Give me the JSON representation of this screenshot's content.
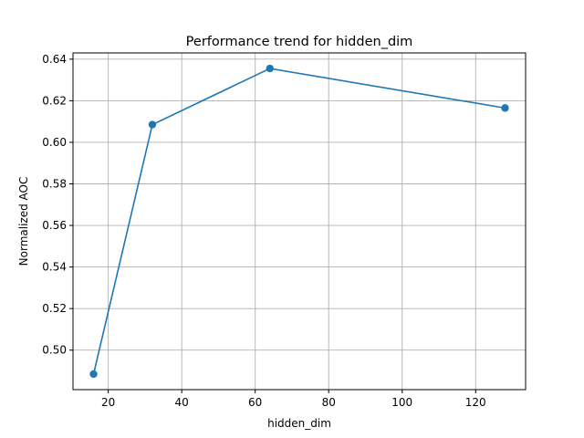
{
  "chart_data": {
    "type": "line",
    "title": "Performance trend for hidden_dim",
    "xlabel": "hidden_dim",
    "ylabel": "Normalized AOC",
    "x": [
      16,
      32,
      64,
      128
    ],
    "series": [
      {
        "values": [
          0.4885,
          0.6085,
          0.6355,
          0.6165
        ]
      }
    ],
    "xlim": [
      10.4,
      133.6
    ],
    "ylim": [
      0.481,
      0.643
    ],
    "xticks": [
      20,
      40,
      60,
      80,
      100,
      120
    ],
    "yticks": [
      0.5,
      0.52,
      0.54,
      0.56,
      0.58,
      0.6,
      0.62,
      0.64
    ],
    "xtick_labels": [
      "20",
      "40",
      "60",
      "80",
      "100",
      "120"
    ],
    "ytick_labels": [
      "0.50",
      "0.52",
      "0.54",
      "0.56",
      "0.58",
      "0.60",
      "0.62",
      "0.64"
    ],
    "grid": true,
    "line_color": "#1f77b4",
    "marker": "circle"
  }
}
